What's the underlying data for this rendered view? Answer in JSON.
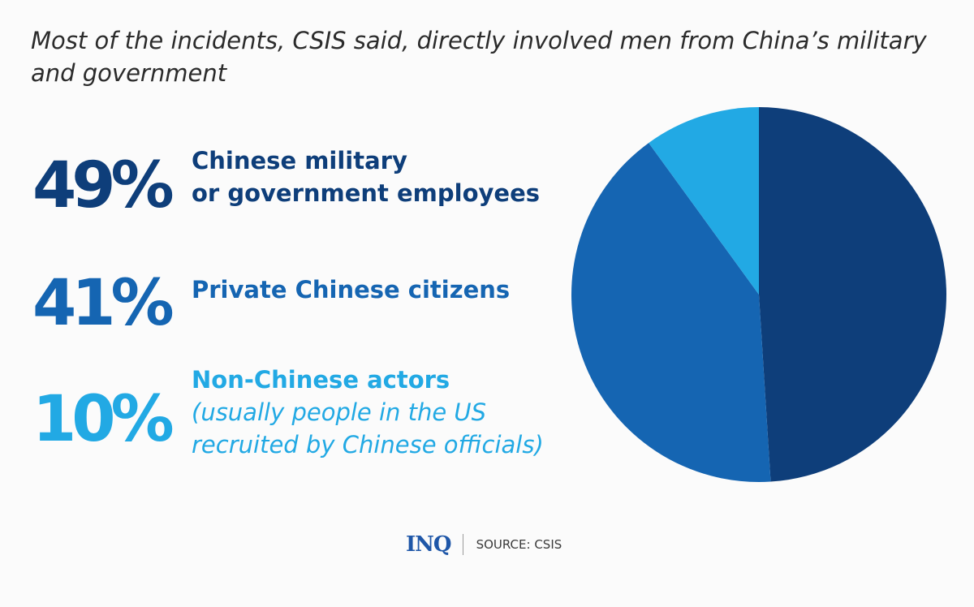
{
  "title": "Most of the incidents, CSIS said, directly involved men from China’s military and government",
  "stats": [
    {
      "percent": "49%",
      "label_lines": [
        "Chinese military",
        "or government employees"
      ],
      "note_lines": [],
      "color": "#0e3e7a"
    },
    {
      "percent": "41%",
      "label_lines": [
        "Private Chinese citizens"
      ],
      "note_lines": [],
      "color": "#1565b2"
    },
    {
      "percent": "10%",
      "label_lines": [
        "Non-Chinese actors"
      ],
      "note_lines": [
        "(usually people in the US",
        "recruited by Chinese officials)"
      ],
      "color": "#22a9e4"
    }
  ],
  "chart_data": {
    "type": "pie",
    "title": "",
    "categories": [
      "Chinese military or government employees",
      "Private Chinese citizens",
      "Non-Chinese actors"
    ],
    "values": [
      49,
      41,
      10
    ],
    "colors": [
      "#0e3e7a",
      "#1565b2",
      "#22a9e4"
    ],
    "legend": "left"
  },
  "footer": {
    "logo": "INQ",
    "source": "SOURCE: CSIS"
  }
}
